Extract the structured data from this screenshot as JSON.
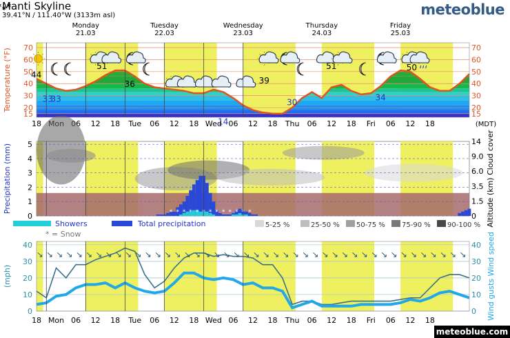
{
  "header": {
    "location": "Manti Skyline",
    "coords": "39.41°N / 111.40°W (3133m asl)",
    "brand": "meteoblue",
    "footer_brand": "meteoblue.com"
  },
  "days": [
    {
      "name": "Monday",
      "date": "21.03"
    },
    {
      "name": "Tuesday",
      "date": "22.03"
    },
    {
      "name": "Wednesday",
      "date": "23.03"
    },
    {
      "name": "Thursday",
      "date": "24.03"
    },
    {
      "name": "Friday",
      "date": "25.03"
    }
  ],
  "time_axis": {
    "ticks": [
      "18",
      "Mon",
      "06",
      "12",
      "18",
      "Tue",
      "06",
      "12",
      "18",
      "Wed",
      "06",
      "12",
      "18",
      "Thu",
      "06",
      "12",
      "18",
      "Fri",
      "06",
      "12",
      "18"
    ],
    "timezone": "(MDT)"
  },
  "colors": {
    "temp_line": "#e0541e",
    "daylight": "#eef060",
    "precip_total": "#2a48d8",
    "showers": "#22cfd8",
    "wind_speed": "#22a8e8",
    "wind_gust": "#3a6f8a",
    "label_red": "#e0541e",
    "label_blue": "#2233cc",
    "label_teal": "#2a8fa8"
  },
  "chart_data": [
    {
      "type": "area",
      "ylabel": "Temperature (°F)",
      "yticks": [
        15,
        20,
        30,
        40,
        50,
        60,
        70
      ],
      "ylim": [
        12,
        74
      ],
      "x_hours": [
        0,
        6,
        12,
        18,
        24,
        30,
        36,
        42,
        48,
        54,
        60,
        66,
        72,
        78,
        84,
        90,
        96,
        102,
        108,
        114,
        120,
        126,
        132,
        138,
        144,
        150,
        156,
        162,
        168,
        174,
        180,
        186,
        192,
        198,
        204,
        210,
        216,
        222,
        228,
        234,
        240,
        246,
        252,
        258,
        264
      ],
      "temperature": [
        44,
        40,
        36,
        34,
        35,
        38,
        42,
        47,
        51,
        51,
        46,
        40,
        37,
        36,
        35,
        34,
        32,
        32,
        35,
        33,
        28,
        22,
        18,
        16,
        15,
        15,
        20,
        28,
        33,
        28,
        37,
        39,
        34,
        31,
        32,
        38,
        46,
        51,
        50,
        44,
        37,
        34,
        34,
        40,
        48
      ],
      "labels": [
        {
          "text": "44",
          "hour": 0,
          "value": 44,
          "color": "black"
        },
        {
          "text": "33",
          "hour": 7,
          "value": 33,
          "color": "blue"
        },
        {
          "text": "33",
          "hour": 12,
          "value": 33,
          "color": "blue"
        },
        {
          "text": "51",
          "hour": 40,
          "value": 51,
          "color": "black"
        },
        {
          "text": "36",
          "hour": 57,
          "value": 36,
          "color": "black"
        },
        {
          "text": "14",
          "hour": 114,
          "value": 14,
          "color": "blue"
        },
        {
          "text": "39",
          "hour": 139,
          "value": 39,
          "color": "black"
        },
        {
          "text": "30",
          "hour": 156,
          "value": 30,
          "color": "blue"
        },
        {
          "text": "51",
          "hour": 180,
          "value": 51,
          "color": "black"
        },
        {
          "text": "34",
          "hour": 210,
          "value": 34,
          "color": "blue"
        },
        {
          "text": "50",
          "hour": 229,
          "value": 50,
          "color": "black"
        }
      ],
      "weather_icons": [
        {
          "hour": 1,
          "kind": "sun"
        },
        {
          "hour": 12,
          "kind": "moon"
        },
        {
          "hour": 20,
          "kind": "moon"
        },
        {
          "hour": 36,
          "kind": "sun-cloud"
        },
        {
          "hour": 46,
          "kind": "cloud"
        },
        {
          "hour": 58,
          "kind": "moon-cloud"
        },
        {
          "hour": 68,
          "kind": "moon"
        },
        {
          "hour": 82,
          "kind": "sun-cloud-snow"
        },
        {
          "hour": 92,
          "kind": "cloud-snow"
        },
        {
          "hour": 103,
          "kind": "cloud-snow"
        },
        {
          "hour": 113,
          "kind": "cloud-snow"
        },
        {
          "hour": 128,
          "kind": "cloud-snow"
        },
        {
          "hour": 139,
          "kind": "sun-cloud"
        },
        {
          "hour": 152,
          "kind": "moon-cloud"
        },
        {
          "hour": 162,
          "kind": "moon"
        },
        {
          "hour": 177,
          "kind": "cloud"
        },
        {
          "hour": 184,
          "kind": "sun-cloud"
        },
        {
          "hour": 200,
          "kind": "moon"
        },
        {
          "hour": 211,
          "kind": "moon-cloud"
        },
        {
          "hour": 226,
          "kind": "sun-cloud"
        },
        {
          "hour": 234,
          "kind": "cloud-rain"
        }
      ]
    },
    {
      "type": "bar",
      "ylabel": "Precipitation (mm)",
      "yticks": [
        0,
        1,
        2,
        3,
        4,
        5
      ],
      "ylim": [
        0,
        5.2
      ],
      "right_label": "Altitude (km) Cloud cover",
      "right_ticks": [
        "0",
        "1.5",
        "3.5",
        "6.0",
        "9.0",
        "14"
      ],
      "x_hours": [
        74,
        76,
        78,
        80,
        82,
        84,
        86,
        88,
        90,
        92,
        94,
        96,
        98,
        100,
        102,
        104,
        106,
        108,
        110,
        112,
        114,
        116,
        118,
        120,
        122,
        124,
        126,
        128,
        130,
        132,
        134,
        258,
        260,
        262,
        264
      ],
      "total_precipitation": [
        0.1,
        0.1,
        0.1,
        0.2,
        0.3,
        0.3,
        0.6,
        0.8,
        1.0,
        1.4,
        1.8,
        2.2,
        2.5,
        2.8,
        2.8,
        2.3,
        1.6,
        1.0,
        0.4,
        0.2,
        0.1,
        0.1,
        0.1,
        0.2,
        0.4,
        0.5,
        0.4,
        0.3,
        0.2,
        0.1,
        0.1,
        0.2,
        0.3,
        0.4,
        0.5
      ],
      "showers": [
        0,
        0,
        0,
        0,
        0,
        0,
        0,
        0.1,
        0.2,
        0.3,
        0.3,
        0.4,
        0.4,
        0.3,
        0.3,
        0.3,
        0.2,
        0.1,
        0,
        0,
        0,
        0,
        0,
        0.1,
        0.1,
        0.2,
        0.1,
        0.1,
        0,
        0,
        0,
        0,
        0,
        0,
        0
      ],
      "legend": [
        {
          "label": "Showers",
          "key": "showers"
        },
        {
          "label": "Total precipitation",
          "key": "precip_total"
        }
      ],
      "snow_legend": "* = Snow",
      "cloud_legend": [
        "5-25 %",
        "25-50 %",
        "50-75 %",
        "75-90 %",
        "90-100 %"
      ],
      "cloud_legend_colors": [
        "#d8d8d8",
        "#bdbdbd",
        "#a0a0a0",
        "#787878",
        "#484848"
      ]
    },
    {
      "type": "line",
      "ylabel": "(mph)",
      "right_label": "Wind gusts Wind speed",
      "yticks": [
        0,
        10,
        20,
        30,
        40
      ],
      "ylim": [
        0,
        42
      ],
      "x_hours": [
        0,
        6,
        12,
        18,
        24,
        30,
        36,
        42,
        48,
        54,
        60,
        66,
        72,
        78,
        84,
        90,
        96,
        102,
        108,
        114,
        120,
        126,
        132,
        138,
        144,
        150,
        156,
        162,
        168,
        174,
        180,
        186,
        192,
        198,
        204,
        210,
        216,
        222,
        228,
        234,
        240,
        246,
        252,
        258,
        264
      ],
      "series": [
        {
          "name": "Wind gusts",
          "values": [
            12,
            8,
            26,
            20,
            28,
            28,
            31,
            33,
            35,
            38,
            36,
            22,
            14,
            18,
            26,
            32,
            35,
            35,
            33,
            34,
            33,
            33,
            32,
            28,
            28,
            20,
            4,
            6,
            6,
            4,
            4,
            5,
            6,
            6,
            6,
            6,
            6,
            7,
            8,
            8,
            14,
            20,
            22,
            22,
            20
          ]
        },
        {
          "name": "Wind speed",
          "values": [
            4,
            5,
            9,
            10,
            14,
            16,
            16,
            17,
            14,
            17,
            14,
            12,
            11,
            12,
            17,
            23,
            23,
            20,
            19,
            20,
            19,
            16,
            17,
            14,
            14,
            12,
            2,
            4,
            6,
            3,
            3,
            3,
            3,
            4,
            4,
            4,
            4,
            5,
            7,
            6,
            8,
            11,
            12,
            10,
            8
          ]
        }
      ]
    }
  ]
}
